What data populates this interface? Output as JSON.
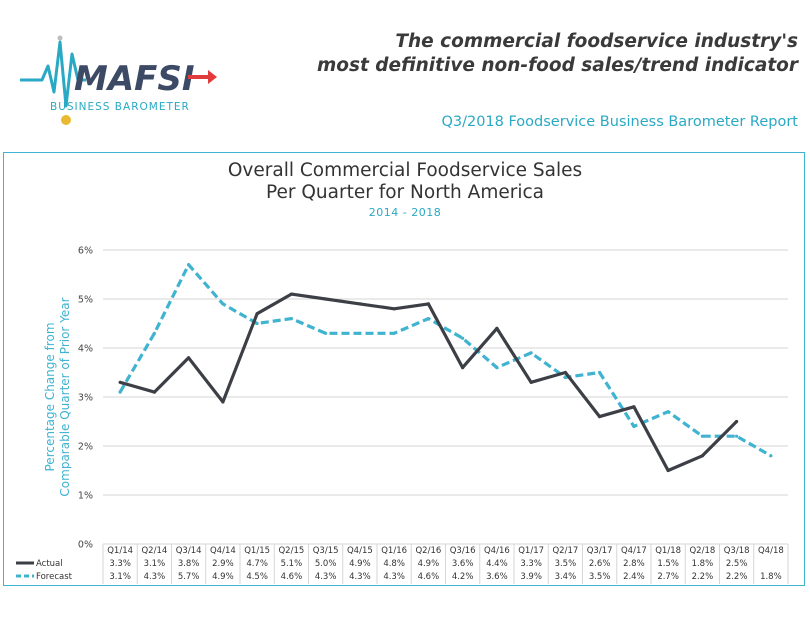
{
  "logo": {
    "brand": "MAFSI",
    "sub": "BUSINESS BAROMETER",
    "colors": {
      "teal": "#2aa9c4",
      "navy": "#3c4a66",
      "red": "#e23b3b",
      "gold": "#e8b931"
    }
  },
  "header": {
    "tagline_line1": "The commercial foodservice industry's",
    "tagline_line2": "most definitive non-food sales/trend indicator",
    "report_title": "Q3/2018 Foodservice Business Barometer Report"
  },
  "chart_data": {
    "type": "line",
    "title_line1": "Overall Commercial Foodservice Sales",
    "title_line2": "Per Quarter for North America",
    "subtitle": "2014 - 2018",
    "ylabel_line1": "Percentage Change from",
    "ylabel_line2": "Comparable Quarter of Prior Year",
    "ylim": [
      0,
      6
    ],
    "yticks": [
      "0%",
      "1%",
      "2%",
      "3%",
      "4%",
      "5%",
      "6%"
    ],
    "grid": true,
    "categories": [
      "Q1/14",
      "Q2/14",
      "Q3/14",
      "Q4/14",
      "Q1/15",
      "Q2/15",
      "Q3/15",
      "Q4/15",
      "Q1/16",
      "Q2/16",
      "Q3/16",
      "Q4/16",
      "Q1/17",
      "Q2/17",
      "Q3/17",
      "Q4/17",
      "Q1/18",
      "Q2/18",
      "Q3/18",
      "Q4/18"
    ],
    "series": [
      {
        "name": "Actual",
        "color": "#3d3f46",
        "style": "solid",
        "values": [
          3.3,
          3.1,
          3.8,
          2.9,
          4.7,
          5.1,
          5.0,
          4.9,
          4.8,
          4.9,
          3.6,
          4.4,
          3.3,
          3.5,
          2.6,
          2.8,
          1.5,
          1.8,
          2.5,
          null
        ],
        "labels": [
          "3.3%",
          "3.1%",
          "3.8%",
          "2.9%",
          "4.7%",
          "5.1%",
          "5.0%",
          "4.9%",
          "4.8%",
          "4.9%",
          "3.6%",
          "4.4%",
          "3.3%",
          "3.5%",
          "2.6%",
          "2.8%",
          "1.5%",
          "1.8%",
          "2.5%",
          ""
        ]
      },
      {
        "name": "Forecast",
        "color": "#3fb3cf",
        "style": "dashed",
        "values": [
          3.1,
          4.3,
          5.7,
          4.9,
          4.5,
          4.6,
          4.3,
          4.3,
          4.3,
          4.6,
          4.2,
          3.6,
          3.9,
          3.4,
          3.5,
          2.4,
          2.7,
          2.2,
          2.2,
          1.8
        ],
        "labels": [
          "3.1%",
          "4.3%",
          "5.7%",
          "4.9%",
          "4.5%",
          "4.6%",
          "4.3%",
          "4.3%",
          "4.3%",
          "4.6%",
          "4.2%",
          "3.6%",
          "3.9%",
          "3.4%",
          "3.5%",
          "2.4%",
          "2.7%",
          "2.2%",
          "2.2%",
          "1.8%"
        ]
      }
    ]
  }
}
